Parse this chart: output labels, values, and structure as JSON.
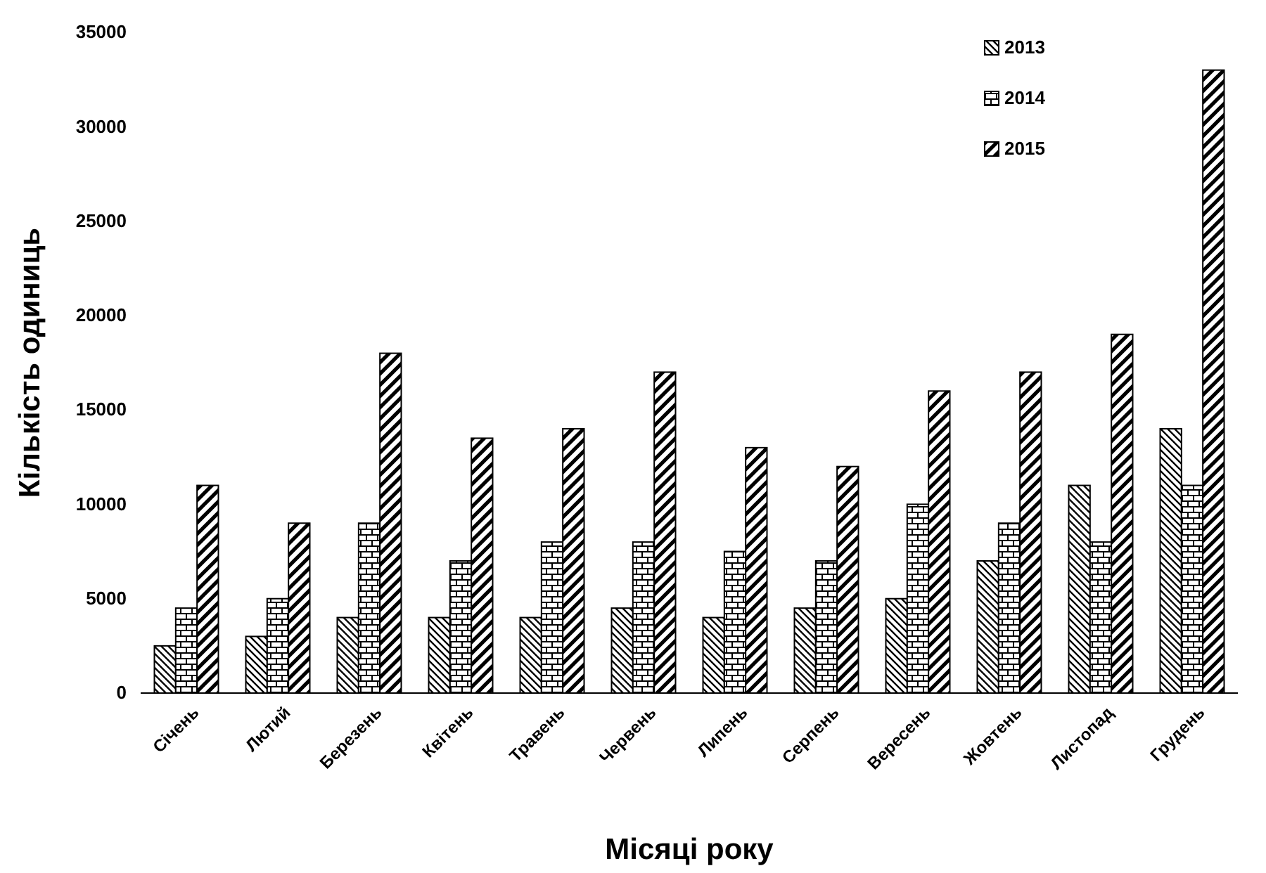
{
  "chart_data": {
    "type": "bar",
    "xlabel": "Місяці року",
    "ylabel": "Кількість одиниць",
    "categories": [
      "Січень",
      "Лютий",
      "Березень",
      "Квітень",
      "Травень",
      "Червень",
      "Липень",
      "Серпень",
      "Вересень",
      "Жовтень",
      "Листопад",
      "Грудень"
    ],
    "series": [
      {
        "name": "2013",
        "color": "#000000",
        "values": [
          2500,
          3000,
          4000,
          4000,
          4000,
          4500,
          4000,
          4500,
          5000,
          7000,
          11000,
          14000
        ]
      },
      {
        "name": "2014",
        "color": "#000000",
        "values": [
          4500,
          5000,
          9000,
          7000,
          8000,
          8000,
          7500,
          7000,
          10000,
          9000,
          8000,
          11000
        ]
      },
      {
        "name": "2015",
        "color": "#000000",
        "values": [
          11000,
          9000,
          18000,
          13500,
          14000,
          17000,
          13000,
          12000,
          16000,
          17000,
          19000,
          33000
        ]
      }
    ],
    "ylim": [
      0,
      35000
    ],
    "yticks": [
      0,
      5000,
      10000,
      15000,
      20000,
      25000,
      30000,
      35000
    ],
    "legend": "top right"
  }
}
